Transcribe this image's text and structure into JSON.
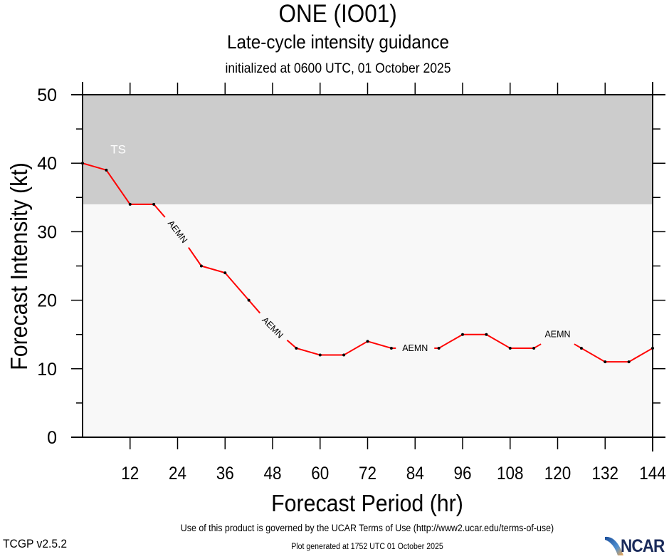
{
  "header": {
    "title": "ONE (IO01)",
    "subtitle": "Late-cycle intensity guidance",
    "initialized": "initialized at 0600 UTC, 01 October 2025"
  },
  "footer": {
    "terms": "Use of this product is governed by the UCAR Terms of Use (http://www2.ucar.edu/terms-of-use)",
    "version": "TCGP v2.5.2",
    "generated": "Plot generated at 1752 UTC   01 October 2025",
    "logo_text": "NCAR"
  },
  "colors": {
    "series_line": "#ff0000",
    "ts_band": "#cccccc",
    "plot_bg": "#f8f8f8",
    "ts_label": "#ffffff",
    "marker": "#000000"
  },
  "chart_data": {
    "type": "line",
    "title": "ONE (IO01)",
    "subtitle": "Late-cycle intensity guidance",
    "xlabel": "Forecast Period (hr)",
    "ylabel": "Forecast Intensity (kt)",
    "xlim": [
      0,
      144
    ],
    "ylim": [
      0,
      50
    ],
    "xticks": [
      12,
      24,
      36,
      48,
      60,
      72,
      84,
      96,
      108,
      120,
      132,
      144
    ],
    "yticks": [
      0,
      10,
      20,
      30,
      40,
      50
    ],
    "yminor_step": 5,
    "grid": false,
    "bands": [
      {
        "label": "TS",
        "from": 34,
        "to": 50
      }
    ],
    "series": [
      {
        "name": "AEMN",
        "x": [
          0,
          6,
          12,
          18,
          24,
          30,
          36,
          42,
          48,
          54,
          60,
          66,
          72,
          78,
          84,
          90,
          96,
          102,
          108,
          114,
          120,
          126,
          132,
          138,
          144
        ],
        "values": [
          40,
          39,
          34,
          34,
          30,
          25,
          24,
          20,
          16,
          13,
          12,
          12,
          14,
          13,
          13,
          13,
          15,
          15,
          13,
          13,
          15,
          13,
          11,
          11,
          13
        ],
        "label_at_hours": [
          24,
          48,
          84,
          120
        ]
      }
    ]
  }
}
